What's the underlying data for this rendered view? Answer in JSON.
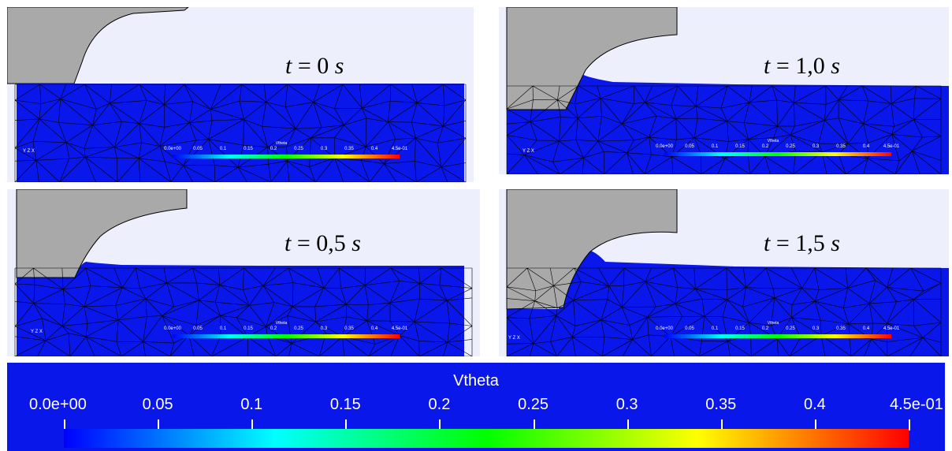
{
  "panels": [
    {
      "id": "t0",
      "time_label": "t = 0 s",
      "t_var": "t",
      "t_eq": "=",
      "t_val": "0",
      "t_unit": "s"
    },
    {
      "id": "t10",
      "time_label": "t = 1,0 s",
      "t_var": "t",
      "t_eq": "=",
      "t_val": "1,0",
      "t_unit": "s"
    },
    {
      "id": "t05",
      "time_label": "t = 0,5 s",
      "t_var": "t",
      "t_eq": "=",
      "t_val": "0,5",
      "t_unit": "s"
    },
    {
      "id": "t15",
      "time_label": "t = 1,5 s",
      "t_var": "t",
      "t_eq": "=",
      "t_val": "1,5",
      "t_unit": "s"
    }
  ],
  "colorbar": {
    "title": "Vtheta",
    "ticks": [
      "0.0e+00",
      "0.05",
      "0.1",
      "0.15",
      "0.2",
      "0.25",
      "0.3",
      "0.35",
      "0.4",
      "4.5e-01"
    ],
    "range": [
      0,
      0.45
    ],
    "stops": [
      "#0000ff",
      "#00ffff",
      "#00ff00",
      "#ffff00",
      "#ff0000"
    ]
  },
  "axes_labels": {
    "y": "Y",
    "z": "Z",
    "x": "X"
  },
  "colors": {
    "material": "#0a17ea",
    "tool": "#a9a9a9",
    "background": "#eeeffc",
    "mesh": "#000000"
  }
}
